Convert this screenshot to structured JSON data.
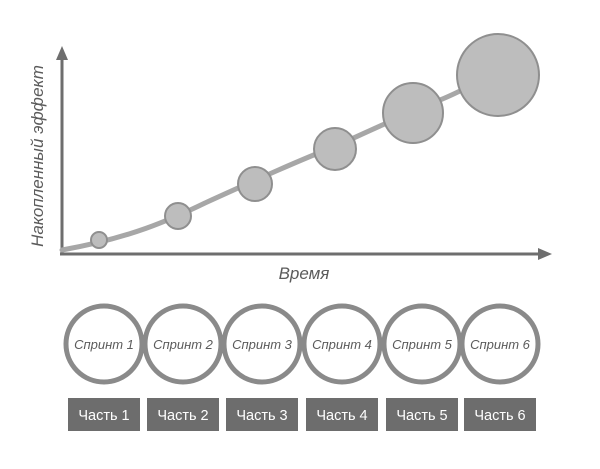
{
  "axes": {
    "y_label": "Накопленный эффект",
    "x_label": "Время"
  },
  "growth_points": [
    {
      "level": 1
    },
    {
      "level": 2
    },
    {
      "level": 3
    },
    {
      "level": 4
    },
    {
      "level": 5
    },
    {
      "level": 6
    }
  ],
  "sprints": [
    {
      "label": "Спринт 1"
    },
    {
      "label": "Спринт 2"
    },
    {
      "label": "Спринт 3"
    },
    {
      "label": "Спринт 4"
    },
    {
      "label": "Спринт 5"
    },
    {
      "label": "Спринт 6"
    }
  ],
  "parts": [
    {
      "label": "Часть 1"
    },
    {
      "label": "Часть 2"
    },
    {
      "label": "Часть 3"
    },
    {
      "label": "Часть 4"
    },
    {
      "label": "Часть 5"
    },
    {
      "label": "Часть 6"
    }
  ],
  "colors": {
    "axis": "#6e6e6e",
    "curve": "#a7a7a7",
    "bubble_fill": "#bdbdbd",
    "bubble_stroke": "#8f8f8f",
    "sprint_ring": "#8a8a8a",
    "part_box": "#6d6d6d",
    "part_text": "#ffffff"
  }
}
